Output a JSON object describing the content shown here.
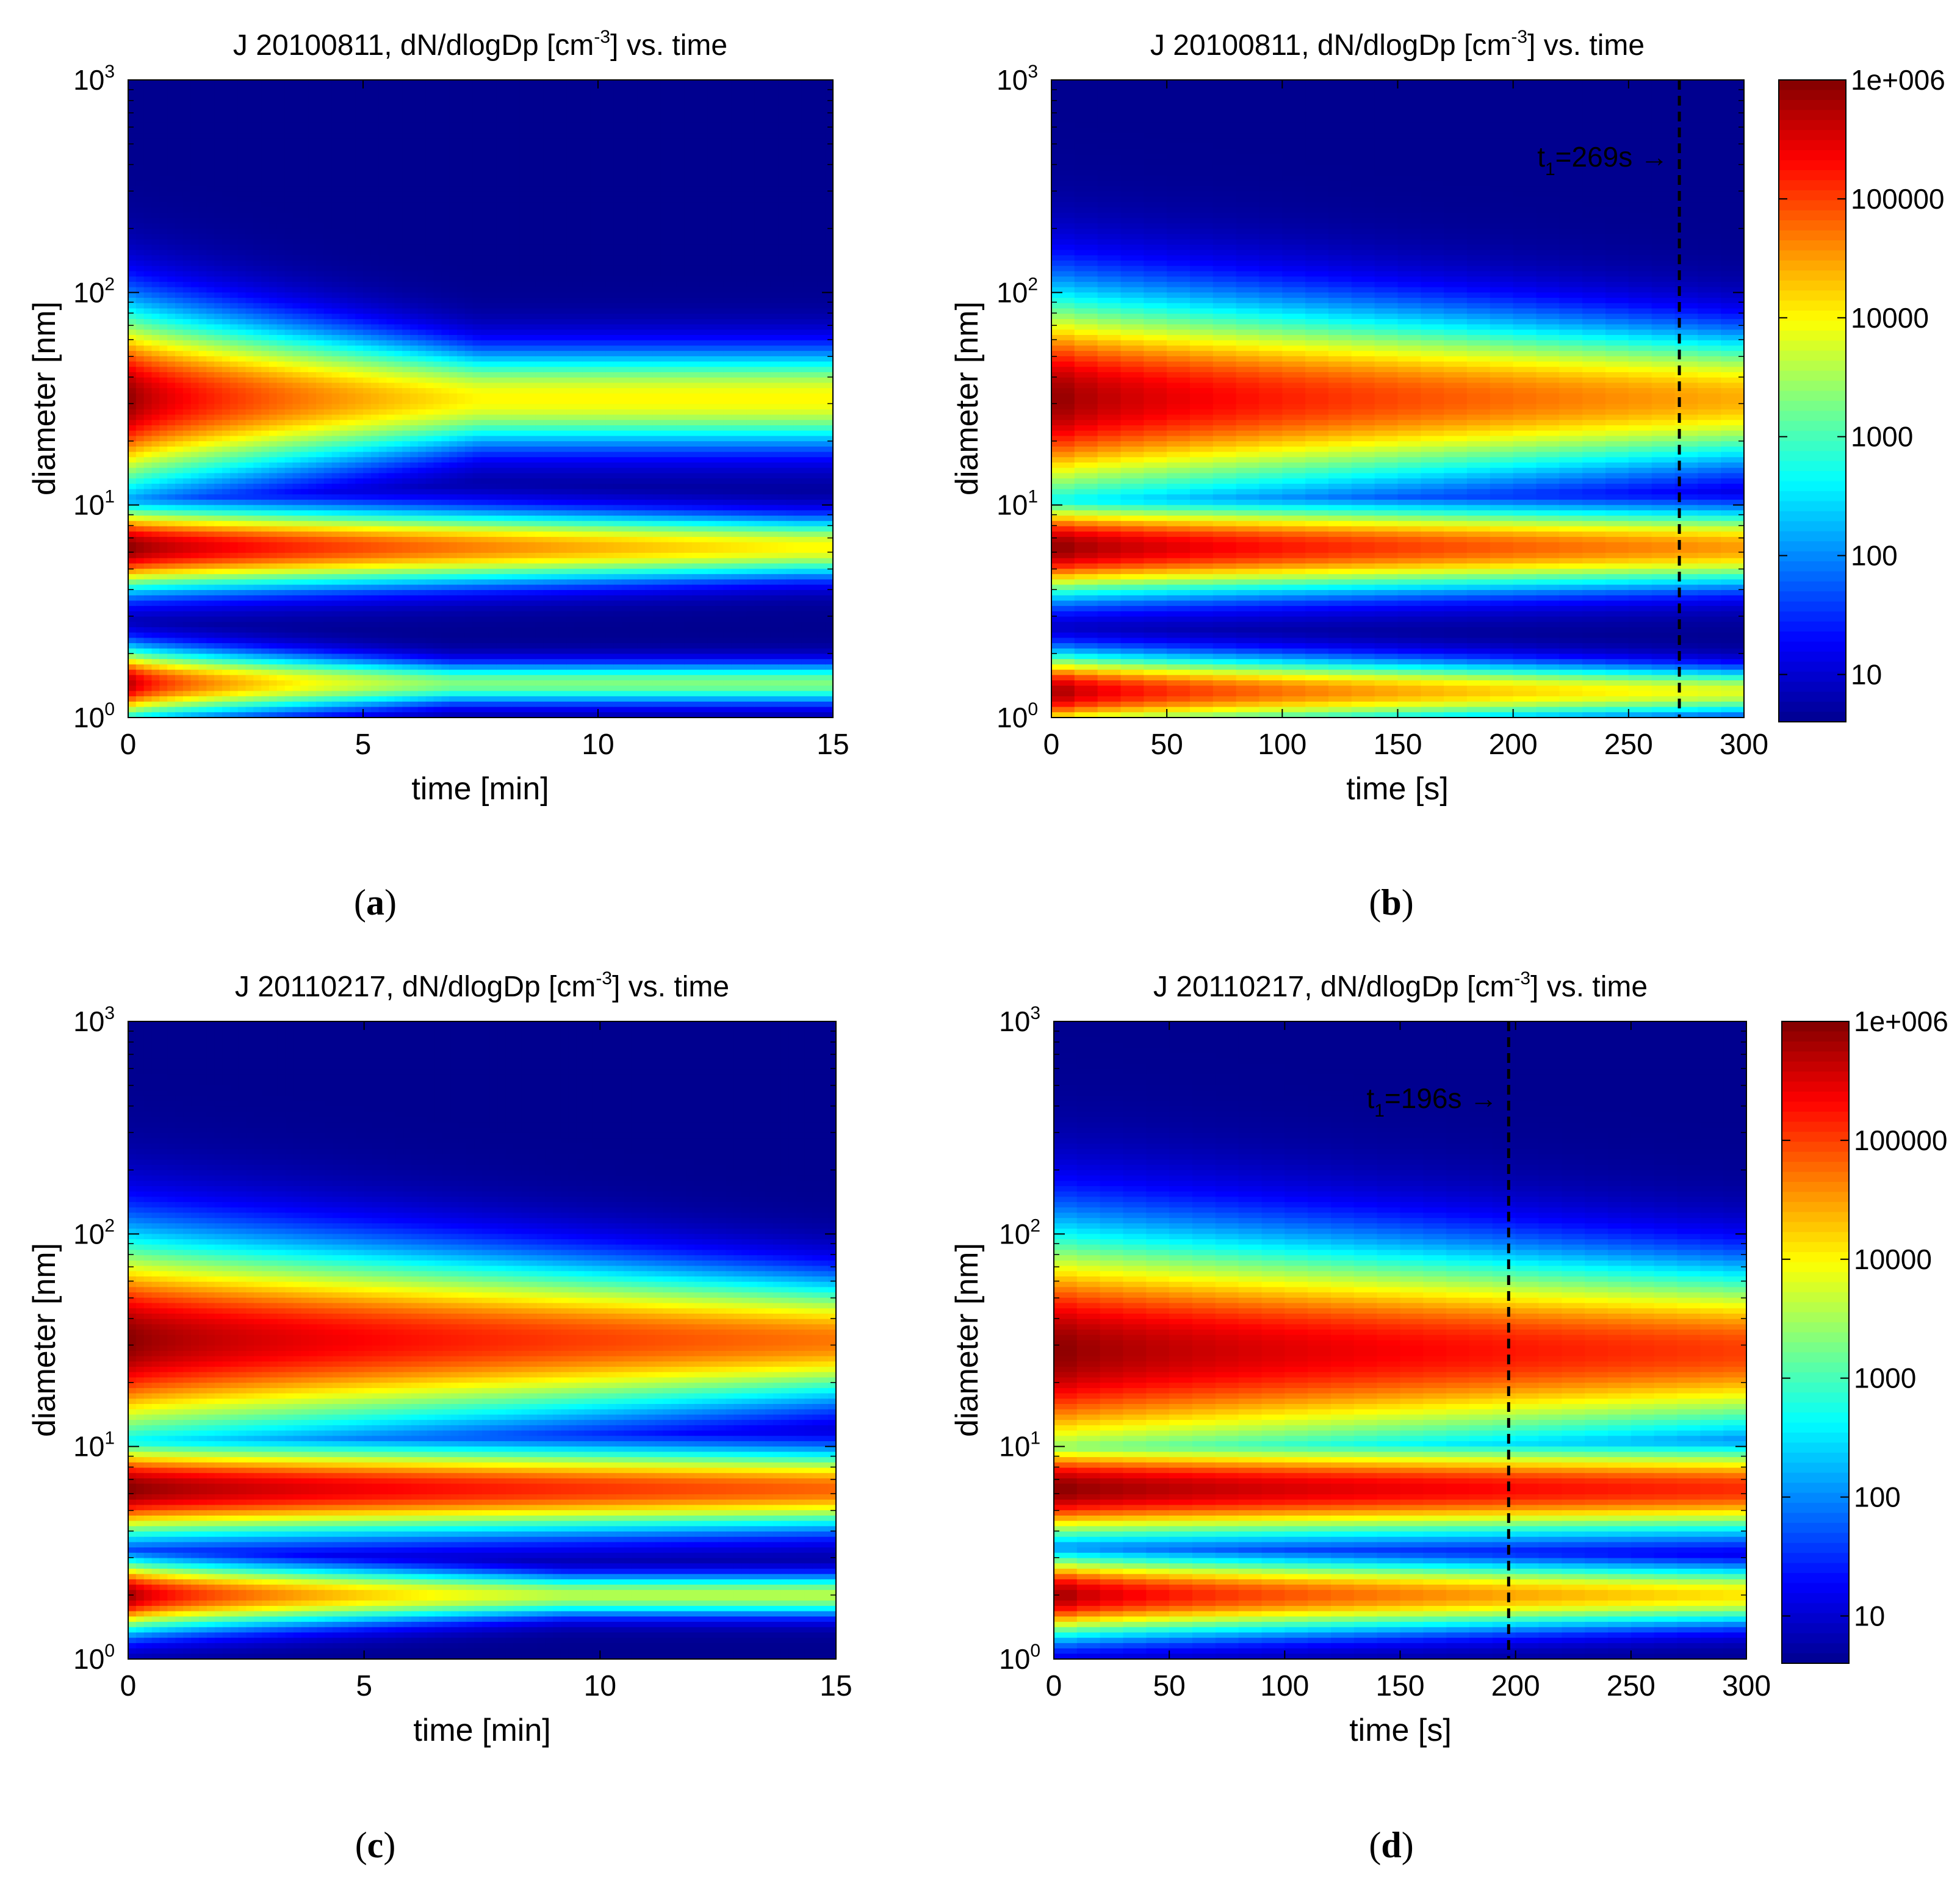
{
  "figure_captions": [
    "a",
    "b",
    "c",
    "d"
  ],
  "colors": {
    "jet": [
      "#00008F",
      "#0000FF",
      "#0080FF",
      "#00FFFF",
      "#80FF80",
      "#FFFF00",
      "#FF8000",
      "#FF0000",
      "#800000"
    ],
    "marker": "#000000"
  },
  "chart_data": [
    {
      "id": "a",
      "type": "heatmap",
      "title_prefix": "J 20100811, dN/dlogDp [cm",
      "title_sup": "-3",
      "title_suffix": "] vs. time",
      "xlabel": "time [min]",
      "ylabel": "diameter [nm]",
      "xlim": [
        0,
        15
      ],
      "xticks": [
        "0",
        "5",
        "10",
        "15"
      ],
      "xtick_values": [
        0,
        5,
        10,
        15
      ],
      "yscale": "log",
      "ylim": [
        1,
        1000
      ],
      "yticks": [
        {
          "base": "10",
          "exp": "0"
        },
        {
          "base": "10",
          "exp": "1"
        },
        {
          "base": "10",
          "exp": "2"
        },
        {
          "base": "10",
          "exp": "3"
        }
      ],
      "color_scale": "log",
      "clim": [
        4,
        1000000
      ],
      "resolution": "smooth",
      "modes": [
        {
          "log10_diameter": 1.5,
          "peak_log10_conc": 6.0,
          "reach": 0.5,
          "width_min": 0.3,
          "width_max": 0.16,
          "plateau": 4.0,
          "decay_pow": 0.6
        },
        {
          "log10_diameter": 0.8,
          "peak_log10_conc": 6.0,
          "reach": 0.95,
          "width_min": 0.14,
          "width_max": 0.1,
          "plateau": 4.0,
          "decay_pow": 0.6
        },
        {
          "log10_diameter": 0.16,
          "peak_log10_conc": 5.9,
          "reach": 0.46,
          "width_min": 0.12,
          "width_max": 0.07,
          "plateau": 3.3,
          "decay_pow": 0.5
        }
      ],
      "background_log10_conc": 0.6,
      "annotation": null
    },
    {
      "id": "b",
      "type": "heatmap",
      "title_prefix": "J 20100811, dN/dlogDp [cm",
      "title_sup": "-3",
      "title_suffix": "] vs. time",
      "xlabel": "time [s]",
      "ylabel": "diameter [nm]",
      "xlim": [
        0,
        300
      ],
      "xticks": [
        "0",
        "50",
        "100",
        "150",
        "200",
        "250",
        "300"
      ],
      "xtick_values": [
        0,
        50,
        100,
        150,
        200,
        250,
        300
      ],
      "yscale": "log",
      "ylim": [
        1,
        1000
      ],
      "yticks": [
        {
          "base": "10",
          "exp": "0"
        },
        {
          "base": "10",
          "exp": "1"
        },
        {
          "base": "10",
          "exp": "2"
        },
        {
          "base": "10",
          "exp": "3"
        }
      ],
      "color_scale": "log",
      "clim": [
        4,
        1000000
      ],
      "resolution": "blocky",
      "modes": [
        {
          "log10_diameter": 1.5,
          "peak_log10_conc": 6.0,
          "reach": 1.0,
          "width_min": 0.35,
          "width_max": 0.22,
          "plateau": 4.4,
          "decay_pow": 0.6
        },
        {
          "log10_diameter": 0.8,
          "peak_log10_conc": 6.0,
          "reach": 1.0,
          "width_min": 0.16,
          "width_max": 0.13,
          "plateau": 4.5,
          "decay_pow": 0.6
        },
        {
          "log10_diameter": 0.12,
          "peak_log10_conc": 6.0,
          "reach": 1.0,
          "width_min": 0.13,
          "width_max": 0.08,
          "plateau": 3.8,
          "decay_pow": 0.5
        }
      ],
      "background_log10_conc": 0.6,
      "annotation": {
        "t_value": 272,
        "label_main": "t",
        "label_sub": "1",
        "label_rest": "=269s",
        "arrow": "→"
      },
      "colorbar": {
        "labels": [
          "1e+006",
          "100000",
          "10000",
          "1000",
          "100",
          "10"
        ],
        "log10_values": [
          6,
          5,
          4,
          3,
          2,
          1
        ]
      }
    },
    {
      "id": "c",
      "type": "heatmap",
      "title_prefix": "J 20110217, dN/dlogDp [cm",
      "title_sup": "-3",
      "title_suffix": "] vs. time",
      "xlabel": "time [min]",
      "ylabel": "diameter [nm]",
      "xlim": [
        0,
        15
      ],
      "xticks": [
        "0",
        "5",
        "10",
        "15"
      ],
      "xtick_values": [
        0,
        5,
        10,
        15
      ],
      "yscale": "log",
      "ylim": [
        1,
        1000
      ],
      "yticks": [
        {
          "base": "10",
          "exp": "0"
        },
        {
          "base": "10",
          "exp": "1"
        },
        {
          "base": "10",
          "exp": "2"
        },
        {
          "base": "10",
          "exp": "3"
        }
      ],
      "color_scale": "log",
      "clim": [
        4,
        1000000
      ],
      "resolution": "smooth",
      "modes": [
        {
          "log10_diameter": 1.5,
          "peak_log10_conc": 6.0,
          "reach": 1.0,
          "width_min": 0.34,
          "width_max": 0.2,
          "plateau": 4.7,
          "decay_pow": 0.6
        },
        {
          "log10_diameter": 0.8,
          "peak_log10_conc": 6.0,
          "reach": 1.0,
          "width_min": 0.16,
          "width_max": 0.13,
          "plateau": 4.8,
          "decay_pow": 0.6
        },
        {
          "log10_diameter": 0.3,
          "peak_log10_conc": 6.0,
          "reach": 0.62,
          "width_min": 0.12,
          "width_max": 0.07,
          "plateau": 3.6,
          "decay_pow": 0.5
        }
      ],
      "background_log10_conc": 0.6,
      "annotation": null
    },
    {
      "id": "d",
      "type": "heatmap",
      "title_prefix": "J 20110217, dN/dlogDp [cm",
      "title_sup": "-3",
      "title_suffix": "] vs. time",
      "xlabel": "time [s]",
      "ylabel": "diameter [nm]",
      "xlim": [
        0,
        300
      ],
      "xticks": [
        "0",
        "50",
        "100",
        "150",
        "200",
        "250",
        "300"
      ],
      "xtick_values": [
        0,
        50,
        100,
        150,
        200,
        250,
        300
      ],
      "yscale": "log",
      "ylim": [
        1,
        1000
      ],
      "yticks": [
        {
          "base": "10",
          "exp": "0"
        },
        {
          "base": "10",
          "exp": "1"
        },
        {
          "base": "10",
          "exp": "2"
        },
        {
          "base": "10",
          "exp": "3"
        }
      ],
      "color_scale": "log",
      "clim": [
        4,
        1000000
      ],
      "resolution": "blocky",
      "modes": [
        {
          "log10_diameter": 1.45,
          "peak_log10_conc": 6.0,
          "reach": 1.0,
          "width_min": 0.4,
          "width_max": 0.28,
          "plateau": 5.0,
          "decay_pow": 0.6
        },
        {
          "log10_diameter": 0.8,
          "peak_log10_conc": 6.0,
          "reach": 1.0,
          "width_min": 0.17,
          "width_max": 0.15,
          "plateau": 5.1,
          "decay_pow": 0.6
        },
        {
          "log10_diameter": 0.3,
          "peak_log10_conc": 6.0,
          "reach": 1.0,
          "width_min": 0.14,
          "width_max": 0.1,
          "plateau": 4.1,
          "decay_pow": 0.5
        }
      ],
      "background_log10_conc": 0.6,
      "annotation": {
        "t_value": 197,
        "label_main": "t",
        "label_sub": "1",
        "label_rest": "=196s",
        "arrow": "→"
      },
      "colorbar": {
        "labels": [
          "1e+006",
          "100000",
          "10000",
          "1000",
          "100",
          "10"
        ],
        "log10_values": [
          6,
          5,
          4,
          3,
          2,
          1
        ]
      }
    }
  ]
}
